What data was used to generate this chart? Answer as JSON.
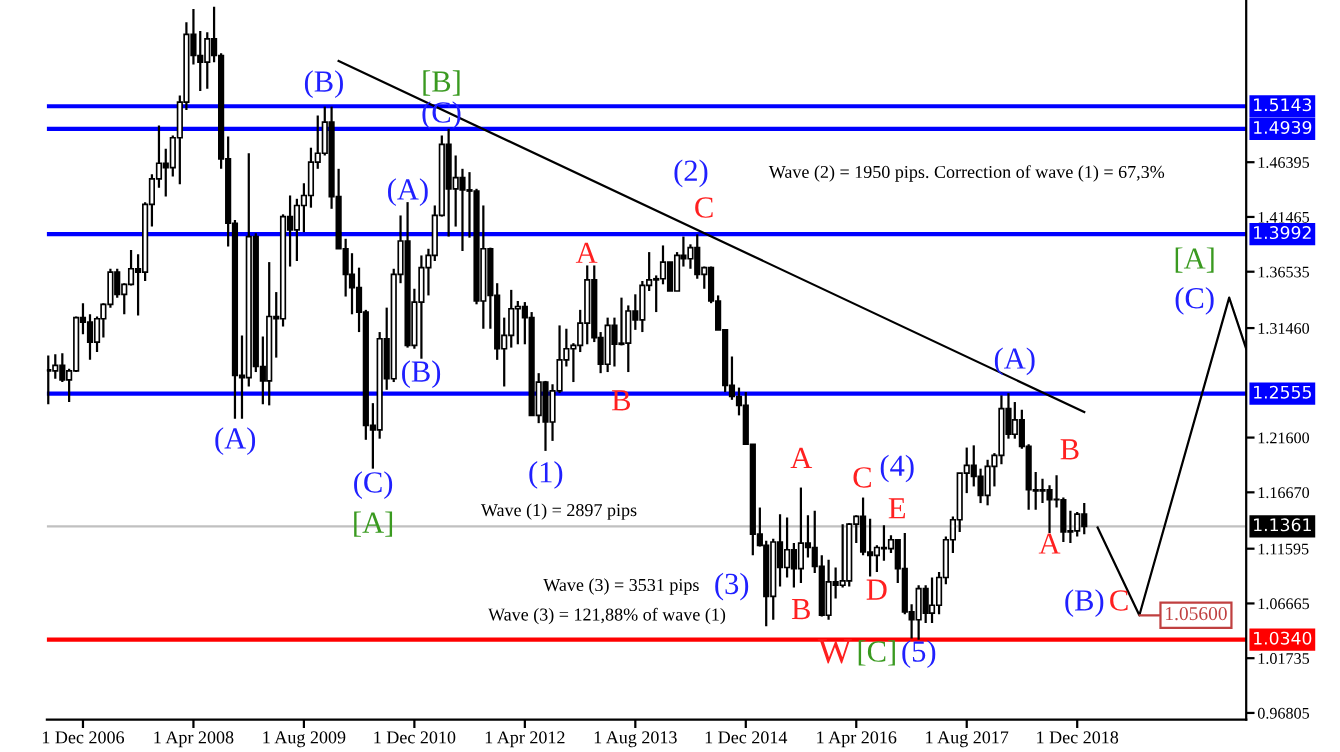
{
  "chart_data": {
    "type": "candlestick",
    "x": [
      "2006-07",
      "2006-08",
      "2006-09",
      "2006-10",
      "2006-11",
      "2006-12",
      "2007-01",
      "2007-02",
      "2007-03",
      "2007-04",
      "2007-05",
      "2007-06",
      "2007-07",
      "2007-08",
      "2007-09",
      "2007-10",
      "2007-11",
      "2007-12",
      "2008-01",
      "2008-02",
      "2008-03",
      "2008-04",
      "2008-05",
      "2008-06",
      "2008-07",
      "2008-08",
      "2008-09",
      "2008-10",
      "2008-11",
      "2008-12",
      "2009-01",
      "2009-02",
      "2009-03",
      "2009-04",
      "2009-05",
      "2009-06",
      "2009-07",
      "2009-08",
      "2009-09",
      "2009-10",
      "2009-11",
      "2009-12",
      "2010-01",
      "2010-02",
      "2010-03",
      "2010-04",
      "2010-05",
      "2010-06",
      "2010-07",
      "2010-08",
      "2010-09",
      "2010-10",
      "2010-11",
      "2010-12",
      "2011-01",
      "2011-02",
      "2011-03",
      "2011-04",
      "2011-05",
      "2011-06",
      "2011-07",
      "2011-08",
      "2011-09",
      "2011-10",
      "2011-11",
      "2011-12",
      "2012-01",
      "2012-02",
      "2012-03",
      "2012-04",
      "2012-05",
      "2012-06",
      "2012-07",
      "2012-08",
      "2012-09",
      "2012-10",
      "2012-11",
      "2012-12",
      "2013-01",
      "2013-02",
      "2013-03",
      "2013-04",
      "2013-05",
      "2013-06",
      "2013-07",
      "2013-08",
      "2013-09",
      "2013-10",
      "2013-11",
      "2013-12",
      "2014-01",
      "2014-02",
      "2014-03",
      "2014-04",
      "2014-05",
      "2014-06",
      "2014-07",
      "2014-08",
      "2014-09",
      "2014-10",
      "2014-11",
      "2014-12",
      "2015-01",
      "2015-02",
      "2015-03",
      "2015-04",
      "2015-05",
      "2015-06",
      "2015-07",
      "2015-08",
      "2015-09",
      "2015-10",
      "2015-11",
      "2015-12",
      "2016-01",
      "2016-02",
      "2016-03",
      "2016-04",
      "2016-05",
      "2016-06",
      "2016-07",
      "2016-08",
      "2016-09",
      "2016-10",
      "2016-11",
      "2016-12",
      "2017-01",
      "2017-02",
      "2017-03",
      "2017-04",
      "2017-05",
      "2017-06",
      "2017-07",
      "2017-08",
      "2017-09",
      "2017-10",
      "2017-11",
      "2017-12",
      "2018-01",
      "2018-02",
      "2018-03",
      "2018-04",
      "2018-05",
      "2018-06",
      "2018-07",
      "2018-08",
      "2018-09",
      "2018-10",
      "2018-11",
      "2018-12",
      "2019-01"
    ],
    "ohlc": [
      [
        1.277,
        1.29,
        1.246,
        1.276
      ],
      [
        1.276,
        1.291,
        1.269,
        1.281
      ],
      [
        1.281,
        1.292,
        1.266,
        1.268
      ],
      [
        1.268,
        1.278,
        1.248,
        1.276
      ],
      [
        1.276,
        1.325,
        1.275,
        1.324
      ],
      [
        1.324,
        1.337,
        1.309,
        1.32
      ],
      [
        1.32,
        1.327,
        1.286,
        1.302
      ],
      [
        1.302,
        1.325,
        1.293,
        1.323
      ],
      [
        1.323,
        1.337,
        1.306,
        1.336
      ],
      [
        1.336,
        1.368,
        1.333,
        1.365
      ],
      [
        1.365,
        1.368,
        1.342,
        1.345
      ],
      [
        1.345,
        1.355,
        1.327,
        1.354
      ],
      [
        1.354,
        1.385,
        1.353,
        1.368
      ],
      [
        1.368,
        1.381,
        1.326,
        1.365
      ],
      [
        1.365,
        1.428,
        1.357,
        1.426
      ],
      [
        1.426,
        1.453,
        1.406,
        1.449
      ],
      [
        1.449,
        1.497,
        1.441,
        1.463
      ],
      [
        1.463,
        1.476,
        1.433,
        1.459
      ],
      [
        1.459,
        1.488,
        1.451,
        1.486
      ],
      [
        1.486,
        1.524,
        1.444,
        1.518
      ],
      [
        1.518,
        1.59,
        1.511,
        1.579
      ],
      [
        1.579,
        1.602,
        1.552,
        1.56
      ],
      [
        1.56,
        1.582,
        1.528,
        1.554
      ],
      [
        1.554,
        1.581,
        1.53,
        1.575
      ],
      [
        1.575,
        1.604,
        1.554,
        1.56
      ],
      [
        1.56,
        1.562,
        1.458,
        1.467
      ],
      [
        1.467,
        1.487,
        1.388,
        1.409
      ],
      [
        1.409,
        1.412,
        1.233,
        1.272
      ],
      [
        1.272,
        1.308,
        1.233,
        1.27
      ],
      [
        1.27,
        1.472,
        1.262,
        1.397
      ],
      [
        1.397,
        1.4,
        1.275,
        1.28
      ],
      [
        1.28,
        1.307,
        1.246,
        1.267
      ],
      [
        1.267,
        1.374,
        1.245,
        1.325
      ],
      [
        1.325,
        1.347,
        1.288,
        1.323
      ],
      [
        1.323,
        1.417,
        1.316,
        1.415
      ],
      [
        1.415,
        1.434,
        1.37,
        1.403
      ],
      [
        1.403,
        1.431,
        1.375,
        1.425
      ],
      [
        1.425,
        1.445,
        1.401,
        1.434
      ],
      [
        1.434,
        1.477,
        1.423,
        1.464
      ],
      [
        1.464,
        1.506,
        1.458,
        1.472
      ],
      [
        1.472,
        1.514,
        1.47,
        1.5
      ],
      [
        1.5,
        1.514,
        1.422,
        1.433
      ],
      [
        1.433,
        1.458,
        1.386,
        1.386
      ],
      [
        1.386,
        1.395,
        1.343,
        1.363
      ],
      [
        1.363,
        1.382,
        1.327,
        1.351
      ],
      [
        1.351,
        1.369,
        1.311,
        1.329
      ],
      [
        1.329,
        1.331,
        1.214,
        1.227
      ],
      [
        1.227,
        1.247,
        1.188,
        1.223
      ],
      [
        1.223,
        1.311,
        1.215,
        1.305
      ],
      [
        1.305,
        1.333,
        1.259,
        1.269
      ],
      [
        1.269,
        1.368,
        1.266,
        1.363
      ],
      [
        1.363,
        1.416,
        1.355,
        1.393
      ],
      [
        1.393,
        1.428,
        1.297,
        1.299
      ],
      [
        1.299,
        1.35,
        1.296,
        1.338
      ],
      [
        1.338,
        1.38,
        1.287,
        1.369
      ],
      [
        1.369,
        1.386,
        1.344,
        1.38
      ],
      [
        1.38,
        1.425,
        1.375,
        1.416
      ],
      [
        1.416,
        1.488,
        1.415,
        1.48
      ],
      [
        1.48,
        1.494,
        1.397,
        1.44
      ],
      [
        1.44,
        1.47,
        1.406,
        1.45
      ],
      [
        1.45,
        1.458,
        1.384,
        1.439
      ],
      [
        1.439,
        1.455,
        1.396,
        1.438
      ],
      [
        1.438,
        1.44,
        1.336,
        1.339
      ],
      [
        1.339,
        1.425,
        1.314,
        1.386
      ],
      [
        1.386,
        1.387,
        1.314,
        1.344
      ],
      [
        1.344,
        1.355,
        1.286,
        1.296
      ],
      [
        1.296,
        1.324,
        1.262,
        1.308
      ],
      [
        1.308,
        1.349,
        1.297,
        1.332
      ],
      [
        1.332,
        1.339,
        1.3,
        1.334
      ],
      [
        1.334,
        1.338,
        1.3,
        1.324
      ],
      [
        1.324,
        1.329,
        1.236,
        1.236
      ],
      [
        1.236,
        1.274,
        1.229,
        1.266
      ],
      [
        1.266,
        1.267,
        1.204,
        1.23
      ],
      [
        1.23,
        1.264,
        1.213,
        1.258
      ],
      [
        1.258,
        1.317,
        1.256,
        1.286
      ],
      [
        1.286,
        1.314,
        1.28,
        1.296
      ],
      [
        1.296,
        1.301,
        1.266,
        1.299
      ],
      [
        1.299,
        1.331,
        1.293,
        1.319
      ],
      [
        1.319,
        1.371,
        1.3,
        1.358
      ],
      [
        1.358,
        1.371,
        1.302,
        1.306
      ],
      [
        1.306,
        1.311,
        1.274,
        1.282
      ],
      [
        1.282,
        1.324,
        1.275,
        1.317
      ],
      [
        1.317,
        1.324,
        1.28,
        1.3
      ],
      [
        1.3,
        1.342,
        1.299,
        1.301
      ],
      [
        1.301,
        1.335,
        1.275,
        1.33
      ],
      [
        1.33,
        1.345,
        1.313,
        1.322
      ],
      [
        1.322,
        1.357,
        1.311,
        1.353
      ],
      [
        1.353,
        1.383,
        1.348,
        1.358
      ],
      [
        1.358,
        1.362,
        1.329,
        1.359
      ],
      [
        1.359,
        1.389,
        1.354,
        1.374
      ],
      [
        1.374,
        1.374,
        1.348,
        1.348
      ],
      [
        1.348,
        1.383,
        1.348,
        1.38
      ],
      [
        1.38,
        1.397,
        1.37,
        1.377
      ],
      [
        1.377,
        1.39,
        1.368,
        1.387
      ],
      [
        1.387,
        1.399,
        1.359,
        1.363
      ],
      [
        1.363,
        1.37,
        1.35,
        1.369
      ],
      [
        1.369,
        1.37,
        1.337,
        1.339
      ],
      [
        1.339,
        1.344,
        1.313,
        1.313
      ],
      [
        1.313,
        1.313,
        1.257,
        1.263
      ],
      [
        1.263,
        1.289,
        1.25,
        1.253
      ],
      [
        1.253,
        1.261,
        1.236,
        1.245
      ],
      [
        1.245,
        1.257,
        1.21,
        1.21
      ],
      [
        1.21,
        1.21,
        1.11,
        1.129
      ],
      [
        1.129,
        1.153,
        1.118,
        1.119
      ],
      [
        1.119,
        1.123,
        1.046,
        1.073
      ],
      [
        1.073,
        1.125,
        1.052,
        1.122
      ],
      [
        1.122,
        1.147,
        1.082,
        1.099
      ],
      [
        1.099,
        1.144,
        1.09,
        1.115
      ],
      [
        1.115,
        1.121,
        1.081,
        1.098
      ],
      [
        1.098,
        1.171,
        1.085,
        1.121
      ],
      [
        1.121,
        1.146,
        1.108,
        1.117
      ],
      [
        1.117,
        1.15,
        1.094,
        1.1
      ],
      [
        1.1,
        1.11,
        1.055,
        1.056
      ],
      [
        1.056,
        1.106,
        1.052,
        1.086
      ],
      [
        1.086,
        1.099,
        1.071,
        1.083
      ],
      [
        1.083,
        1.138,
        1.081,
        1.087
      ],
      [
        1.087,
        1.139,
        1.082,
        1.138
      ],
      [
        1.138,
        1.146,
        1.121,
        1.145
      ],
      [
        1.145,
        1.162,
        1.11,
        1.113
      ],
      [
        1.113,
        1.143,
        1.091,
        1.11
      ],
      [
        1.11,
        1.119,
        1.095,
        1.117
      ],
      [
        1.117,
        1.137,
        1.105,
        1.116
      ],
      [
        1.116,
        1.128,
        1.112,
        1.124
      ],
      [
        1.124,
        1.124,
        1.085,
        1.098
      ],
      [
        1.098,
        1.13,
        1.057,
        1.059
      ],
      [
        1.059,
        1.066,
        1.035,
        1.052
      ],
      [
        1.052,
        1.083,
        1.034,
        1.08
      ],
      [
        1.08,
        1.083,
        1.049,
        1.058
      ],
      [
        1.058,
        1.09,
        1.049,
        1.065
      ],
      [
        1.065,
        1.095,
        1.057,
        1.09
      ],
      [
        1.09,
        1.127,
        1.084,
        1.124
      ],
      [
        1.124,
        1.145,
        1.112,
        1.142
      ],
      [
        1.142,
        1.184,
        1.131,
        1.184
      ],
      [
        1.184,
        1.207,
        1.166,
        1.191
      ],
      [
        1.191,
        1.209,
        1.172,
        1.181
      ],
      [
        1.181,
        1.188,
        1.157,
        1.164
      ],
      [
        1.164,
        1.196,
        1.155,
        1.19
      ],
      [
        1.19,
        1.202,
        1.172,
        1.2
      ],
      [
        1.2,
        1.254,
        1.192,
        1.242
      ],
      [
        1.242,
        1.256,
        1.215,
        1.219
      ],
      [
        1.219,
        1.248,
        1.215,
        1.232
      ],
      [
        1.232,
        1.241,
        1.206,
        1.208
      ],
      [
        1.208,
        1.21,
        1.151,
        1.169
      ],
      [
        1.169,
        1.185,
        1.151,
        1.168
      ],
      [
        1.168,
        1.179,
        1.157,
        1.169
      ],
      [
        1.169,
        1.173,
        1.13,
        1.16
      ],
      [
        1.16,
        1.182,
        1.153,
        1.16
      ],
      [
        1.16,
        1.162,
        1.122,
        1.131
      ],
      [
        1.131,
        1.15,
        1.121,
        1.132
      ],
      [
        1.132,
        1.149,
        1.127,
        1.147
      ],
      [
        1.147,
        1.157,
        1.129,
        1.1361
      ]
    ],
    "series": [
      {
        "type": "line",
        "color": "#000000",
        "x": [
          "2010-01",
          "2019-01"
        ],
        "values": [
          1.555,
          1.239
        ]
      },
      {
        "type": "line",
        "color": "#000000",
        "x": [
          "2019-03",
          "2019-09",
          "2020-10",
          "2020-12-15"
        ],
        "values": [
          1.135,
          1.056,
          1.342,
          1.296
        ]
      }
    ],
    "xlim": [
      "2006-06-25",
      "2020-12-15"
    ],
    "xticks": [
      {
        "value": "2006-12-01",
        "label": "1 Dec 2006"
      },
      {
        "value": "2008-04-01",
        "label": "1 Apr 2008"
      },
      {
        "value": "2009-08-01",
        "label": "1 Aug 2009"
      },
      {
        "value": "2010-12-01",
        "label": "1 Dec 2010"
      },
      {
        "value": "2012-04-01",
        "label": "1 Apr 2012"
      },
      {
        "value": "2013-08-01",
        "label": "1 Aug 2013"
      },
      {
        "value": "2014-12-01",
        "label": "1 Dec 2014"
      },
      {
        "value": "2016-04-01",
        "label": "1 Apr 2016"
      },
      {
        "value": "2017-08-01",
        "label": "1 Aug 2017"
      },
      {
        "value": "2018-12-01",
        "label": "1 Dec 2018"
      }
    ],
    "ylim": [
      0.962,
      1.61
    ],
    "yticks": [
      {
        "value": 1.46395,
        "label": "1.46395"
      },
      {
        "value": 1.41465,
        "label": "1.41465"
      },
      {
        "value": 1.36535,
        "label": "1.36535"
      },
      {
        "value": 1.3146,
        "label": "1.31460"
      },
      {
        "value": 1.216,
        "label": "1.21600"
      },
      {
        "value": 1.1667,
        "label": "1.16670"
      },
      {
        "value": 1.11595,
        "label": "1.11595"
      },
      {
        "value": 1.06665,
        "label": "1.06665"
      },
      {
        "value": 1.01735,
        "label": "1.01735"
      },
      {
        "value": 0.96805,
        "label": "0.96805"
      }
    ],
    "ref_lines": [
      {
        "axis": "y",
        "value": 1.5143,
        "label": "1.5143",
        "color": "#0000ff"
      },
      {
        "axis": "y",
        "value": 1.4939,
        "label": "1.4939",
        "color": "#0000ff"
      },
      {
        "axis": "y",
        "value": 1.3992,
        "label": "1.3992",
        "color": "#0000ff"
      },
      {
        "axis": "y",
        "value": 1.2555,
        "label": "1.2555",
        "color": "#0000ff"
      },
      {
        "axis": "y",
        "value": 1.1361,
        "label": "1.1361",
        "color": "#c0c0c0"
      },
      {
        "axis": "y",
        "value": 1.034,
        "label": "1.0340",
        "color": "#ff0000"
      }
    ],
    "annotations": [
      "(B)",
      "[B]",
      "(C)",
      "(A)",
      "(A)",
      "(B)",
      "(C)",
      "[A]",
      "(1)",
      "A",
      "B",
      "C",
      "(2)",
      "Wave (2) = 1950 pips. Correction of wave (1) = 67,3%",
      "Wave (1) = 2897 pips",
      "Wave (3) = 3531 pips",
      "(3)",
      "Wave (3) = 121,88% of wave (1)",
      "A",
      "B",
      "C",
      "(4)",
      "E",
      "D",
      "W",
      "[C]",
      "(5)",
      "(A)",
      "B",
      "A",
      "(B)",
      "C",
      "[A]",
      "(C)",
      {
        "text": "1.05600",
        "x": "2019-09",
        "y": 1.056
      }
    ]
  }
}
